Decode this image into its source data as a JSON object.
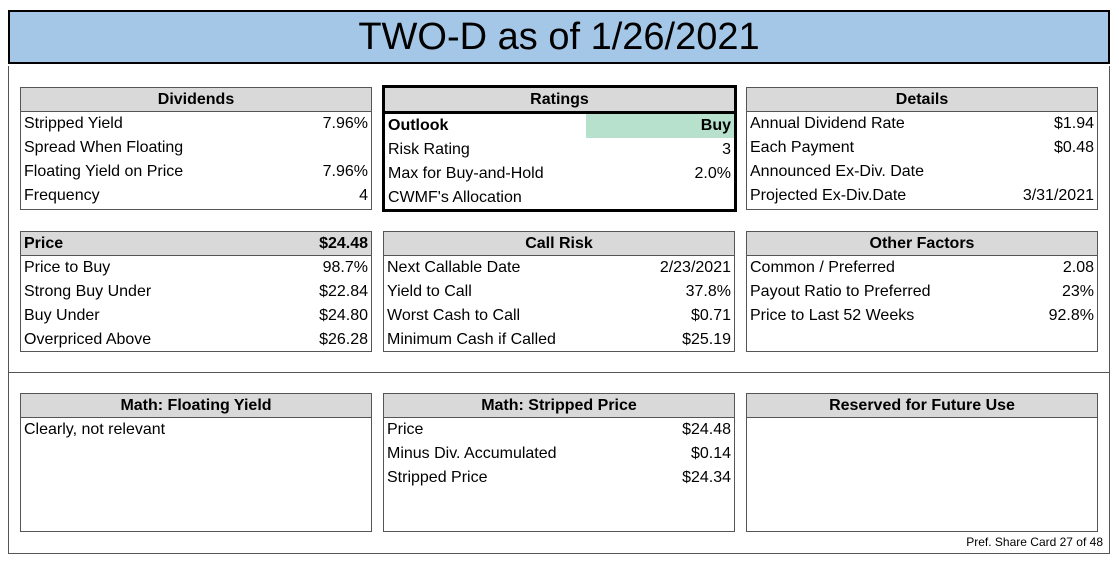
{
  "title": "TWO-D as of 1/26/2021",
  "footer": "Pref. Share Card 27 of 48",
  "dividends": {
    "title": "Dividends",
    "rows": [
      {
        "label": "Stripped Yield",
        "value": "7.96%"
      },
      {
        "label": "Spread When Floating",
        "value": ""
      },
      {
        "label": "Floating Yield on Price",
        "value": "7.96%"
      },
      {
        "label": "Frequency",
        "value": "4"
      }
    ]
  },
  "ratings": {
    "title": "Ratings",
    "rows": [
      {
        "label": "Outlook",
        "value": "Buy"
      },
      {
        "label": "Risk Rating",
        "value": "3"
      },
      {
        "label": "Max for Buy-and-Hold",
        "value": "2.0%"
      },
      {
        "label": "CWMF's Allocation",
        "value": ""
      }
    ]
  },
  "details": {
    "title": "Details",
    "rows": [
      {
        "label": "Annual Dividend Rate",
        "value": "$1.94"
      },
      {
        "label": "Each Payment",
        "value": "$0.48"
      },
      {
        "label": "Announced Ex-Div. Date",
        "value": ""
      },
      {
        "label": "Projected Ex-Div.Date",
        "value": "3/31/2021"
      }
    ]
  },
  "price": {
    "title": "Price",
    "title_value": "$24.48",
    "rows": [
      {
        "label": "Price to Buy",
        "value": "98.7%"
      },
      {
        "label": "Strong Buy Under",
        "value": "$22.84"
      },
      {
        "label": "Buy Under",
        "value": "$24.80"
      },
      {
        "label": "Overpriced Above",
        "value": "$26.28"
      }
    ]
  },
  "call_risk": {
    "title": "Call Risk",
    "rows": [
      {
        "label": "Next Callable Date",
        "value": "2/23/2021"
      },
      {
        "label": "Yield to Call",
        "value": "37.8%"
      },
      {
        "label": "Worst Cash to Call",
        "value": "$0.71"
      },
      {
        "label": "Minimum Cash if Called",
        "value": "$25.19"
      }
    ]
  },
  "other_factors": {
    "title": "Other Factors",
    "rows": [
      {
        "label": "Common / Preferred",
        "value": "2.08"
      },
      {
        "label": "Payout Ratio to Preferred",
        "value": "23%"
      },
      {
        "label": "Price to Last 52 Weeks",
        "value": "92.8%"
      }
    ]
  },
  "math_floating": {
    "title": "Math: Floating Yield",
    "text": "Clearly, not relevant"
  },
  "math_stripped": {
    "title": "Math: Stripped Price",
    "rows": [
      {
        "label": "Price",
        "value": "$24.48"
      },
      {
        "label": "Minus Div. Accumulated",
        "value": "$0.14"
      },
      {
        "label": "Stripped Price",
        "value": "$24.34"
      }
    ]
  },
  "reserved": {
    "title": "Reserved for Future Use"
  }
}
